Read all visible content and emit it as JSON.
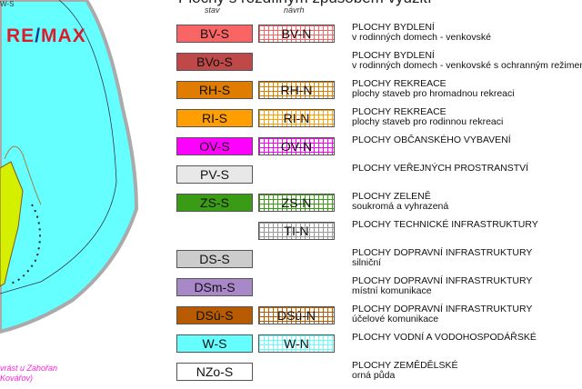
{
  "title": "Plochy s rozdílným způsobem využití",
  "columns": {
    "stav": "stav",
    "navrh": "návrh"
  },
  "map": {
    "top_label": "W-S",
    "logo": {
      "a": "RE",
      "b": "/",
      "c": "MAX"
    },
    "label_line1": "vrást u Zahořan",
    "label_line2": "Kovářov)"
  },
  "legend": [
    {
      "s": "BV-S",
      "n": "BV-N",
      "color": "#f96565",
      "l1": "PLOCHY BYDLENÍ",
      "l2": "v rodinných domech - venkovské"
    },
    {
      "s": "BVo-S",
      "n": null,
      "color": "#bf4848",
      "l1": "PLOCHY BYDLENÍ",
      "l2": "v rodinných domech - venkovské s ochranným režimem"
    },
    {
      "s": "RH-S",
      "n": "RH-N",
      "color": "#e07c00",
      "l1": "PLOCHY REKREACE",
      "l2": "plochy staveb pro hromadnou rekreaci"
    },
    {
      "s": "RI-S",
      "n": "RI-N",
      "color": "#ff9e00",
      "l1": "PLOCHY REKREACE",
      "l2": "plochy staveb pro rodinnou rekreaci"
    },
    {
      "s": "OV-S",
      "n": "OV-N",
      "color": "#ff00ff",
      "l1": "PLOCHY OBČANSKÉHO VYBAVENÍ",
      "l2": ""
    },
    {
      "s": "PV-S",
      "n": null,
      "color": "#e8e8e8",
      "l1": "PLOCHY VEŘEJNÝCH PROSTRANSTVÍ",
      "l2": ""
    },
    {
      "s": "ZS-S",
      "n": "ZS-N",
      "color": "#3a9b14",
      "l1": "PLOCHY ZELENĚ",
      "l2": "soukromá a vyhrazená"
    },
    {
      "s": null,
      "n": "TI-N",
      "color": "#999999",
      "l1": "PLOCHY TECHNICKÉ INFRASTRUKTURY",
      "l2": ""
    },
    {
      "s": "DS-S",
      "n": null,
      "color": "#cccccc",
      "l1": "PLOCHY DOPRAVNÍ INFRASTRUKTURY",
      "l2": "silniční"
    },
    {
      "s": "DSm-S",
      "n": null,
      "color": "#a888c8",
      "l1": "PLOCHY DOPRAVNÍ INFRASTRUKTURY",
      "l2": "místní komunikace"
    },
    {
      "s": "DSú-S",
      "n": "DSú-N",
      "color": "#b85a00",
      "l1": "PLOCHY DOPRAVNÍ INFRASTRUKTURY",
      "l2": "účelové komunikace"
    },
    {
      "s": "W-S",
      "n": "W-N",
      "color": "#66ffff",
      "l1": "PLOCHY VODNÍ A VODOHOSPODÁŘSKÉ",
      "l2": ""
    },
    {
      "s": "NZo-S",
      "n": null,
      "color": "#ffffff",
      "l1": "PLOCHY ZEMĚDĚLSKÉ",
      "l2": "orná půda"
    }
  ]
}
